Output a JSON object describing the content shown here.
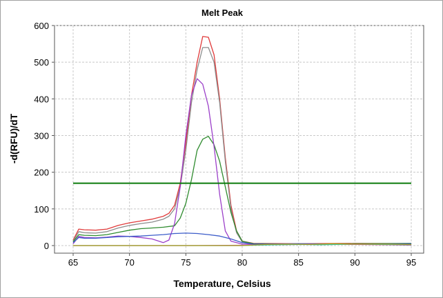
{
  "chart_data": {
    "type": "line",
    "title": "Melt Peak",
    "xlabel": "Temperature, Celsius",
    "ylabel": "-d(RFU)/dT",
    "xlim": [
      65,
      95
    ],
    "ylim": [
      0,
      600
    ],
    "x_ticks": [
      65,
      70,
      75,
      80,
      85,
      90,
      95
    ],
    "y_ticks": [
      0,
      100,
      200,
      300,
      400,
      500,
      600
    ],
    "grid": true,
    "threshold": {
      "value": 170,
      "color": "#0b7a0b"
    },
    "series": [
      {
        "color": "#e03a3a",
        "points": [
          [
            65,
            15
          ],
          [
            65.5,
            45
          ],
          [
            66,
            43
          ],
          [
            67,
            42
          ],
          [
            68,
            45
          ],
          [
            69,
            55
          ],
          [
            70,
            62
          ],
          [
            71,
            67
          ],
          [
            72,
            72
          ],
          [
            73,
            80
          ],
          [
            73.5,
            88
          ],
          [
            74,
            110
          ],
          [
            74.5,
            170
          ],
          [
            75,
            280
          ],
          [
            75.5,
            410
          ],
          [
            76,
            500
          ],
          [
            76.5,
            570
          ],
          [
            77,
            568
          ],
          [
            77.5,
            520
          ],
          [
            78,
            400
          ],
          [
            78.5,
            240
          ],
          [
            79,
            110
          ],
          [
            79.5,
            40
          ],
          [
            80,
            12
          ],
          [
            81,
            6
          ],
          [
            85,
            5
          ],
          [
            90,
            6
          ],
          [
            95,
            5
          ]
        ]
      },
      {
        "color": "#8c8c8c",
        "points": [
          [
            65,
            12
          ],
          [
            65.5,
            38
          ],
          [
            66,
            35
          ],
          [
            67,
            34
          ],
          [
            68,
            38
          ],
          [
            69,
            48
          ],
          [
            70,
            55
          ],
          [
            71,
            60
          ],
          [
            72,
            64
          ],
          [
            73,
            72
          ],
          [
            73.5,
            80
          ],
          [
            74,
            100
          ],
          [
            74.5,
            160
          ],
          [
            75,
            260
          ],
          [
            75.5,
            390
          ],
          [
            76,
            480
          ],
          [
            76.5,
            540
          ],
          [
            77,
            540
          ],
          [
            77.5,
            500
          ],
          [
            78,
            390
          ],
          [
            78.5,
            230
          ],
          [
            79,
            100
          ],
          [
            79.5,
            35
          ],
          [
            80,
            10
          ],
          [
            81,
            5
          ],
          [
            85,
            4
          ],
          [
            90,
            5
          ],
          [
            95,
            4
          ]
        ]
      },
      {
        "color": "#2e8b2e",
        "points": [
          [
            65,
            10
          ],
          [
            65.5,
            30
          ],
          [
            66,
            28
          ],
          [
            67,
            27
          ],
          [
            68,
            30
          ],
          [
            69,
            36
          ],
          [
            70,
            42
          ],
          [
            71,
            46
          ],
          [
            72,
            48
          ],
          [
            73,
            50
          ],
          [
            74,
            54
          ],
          [
            74.5,
            75
          ],
          [
            75,
            115
          ],
          [
            75.5,
            180
          ],
          [
            76,
            260
          ],
          [
            76.5,
            290
          ],
          [
            77,
            298
          ],
          [
            77.5,
            275
          ],
          [
            78,
            230
          ],
          [
            78.5,
            160
          ],
          [
            79,
            90
          ],
          [
            79.5,
            40
          ],
          [
            80,
            12
          ],
          [
            81,
            5
          ],
          [
            85,
            4
          ],
          [
            90,
            5
          ],
          [
            95,
            6
          ]
        ]
      },
      {
        "color": "#9b3fc9",
        "points": [
          [
            65,
            5
          ],
          [
            65.5,
            25
          ],
          [
            66,
            22
          ],
          [
            67,
            21
          ],
          [
            68,
            23
          ],
          [
            69,
            26
          ],
          [
            70,
            25
          ],
          [
            71,
            22
          ],
          [
            72,
            18
          ],
          [
            73,
            8
          ],
          [
            73.5,
            15
          ],
          [
            74,
            60
          ],
          [
            74.5,
            160
          ],
          [
            75,
            300
          ],
          [
            75.5,
            410
          ],
          [
            76,
            455
          ],
          [
            76.5,
            440
          ],
          [
            77,
            380
          ],
          [
            77.5,
            270
          ],
          [
            78,
            140
          ],
          [
            78.5,
            40
          ],
          [
            79,
            12
          ],
          [
            80,
            4
          ],
          [
            85,
            3
          ],
          [
            90,
            4
          ],
          [
            95,
            3
          ]
        ]
      },
      {
        "color": "#3b5cc9",
        "points": [
          [
            65,
            8
          ],
          [
            65.5,
            22
          ],
          [
            66,
            20
          ],
          [
            67,
            20
          ],
          [
            68,
            22
          ],
          [
            69,
            24
          ],
          [
            70,
            25
          ],
          [
            71,
            26
          ],
          [
            72,
            28
          ],
          [
            73,
            30
          ],
          [
            74,
            33
          ],
          [
            75,
            34
          ],
          [
            76,
            33
          ],
          [
            77,
            30
          ],
          [
            78,
            26
          ],
          [
            79,
            18
          ],
          [
            80,
            8
          ],
          [
            81,
            4
          ],
          [
            85,
            5
          ],
          [
            90,
            4
          ],
          [
            95,
            5
          ]
        ]
      },
      {
        "color": "#e0409a",
        "points": [
          [
            65,
            0
          ],
          [
            70,
            0
          ],
          [
            75,
            0
          ],
          [
            80,
            1
          ],
          [
            82,
            2
          ],
          [
            85,
            3
          ],
          [
            88,
            4
          ],
          [
            90,
            3
          ],
          [
            93,
            2
          ],
          [
            95,
            1
          ]
        ]
      },
      {
        "color": "#33c9a8",
        "points": [
          [
            65,
            0
          ],
          [
            70,
            0
          ],
          [
            75,
            0
          ],
          [
            80,
            0
          ],
          [
            81,
            1
          ],
          [
            83,
            2
          ],
          [
            85,
            3
          ],
          [
            87,
            2
          ],
          [
            90,
            4
          ],
          [
            92,
            3
          ],
          [
            95,
            2
          ]
        ]
      },
      {
        "color": "#b0a020",
        "points": [
          [
            65,
            0
          ],
          [
            70,
            0
          ],
          [
            75,
            0
          ],
          [
            80,
            0
          ],
          [
            82,
            3
          ],
          [
            84,
            4
          ],
          [
            86,
            3
          ],
          [
            88,
            5
          ],
          [
            90,
            4
          ],
          [
            93,
            4
          ],
          [
            95,
            3
          ]
        ]
      }
    ]
  }
}
